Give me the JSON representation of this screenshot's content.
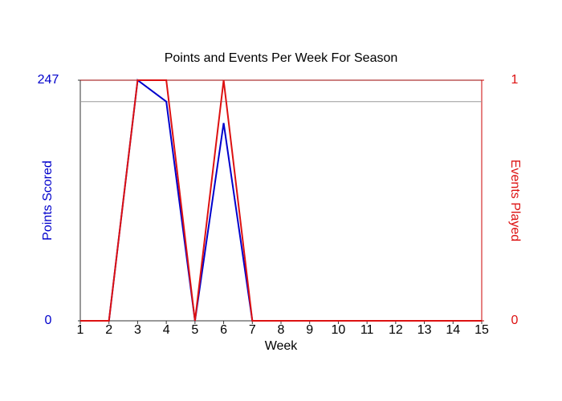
{
  "chart_data": {
    "type": "line",
    "title": "Points and Events Per Week For Season",
    "xlabel": "Week",
    "x": [
      1,
      2,
      3,
      4,
      5,
      6,
      7,
      8,
      9,
      10,
      11,
      12,
      13,
      14,
      15
    ],
    "xlim": [
      1,
      15
    ],
    "xticks": [
      1,
      2,
      3,
      4,
      5,
      6,
      7,
      8,
      9,
      10,
      11,
      12,
      13,
      14,
      15
    ],
    "ylim": [
      0,
      247
    ],
    "yticks": [
      0,
      247
    ],
    "y2lim": [
      0,
      1
    ],
    "y2ticks": [
      0,
      1
    ],
    "hline": 225,
    "series": [
      {
        "name": "Points Scored",
        "color": "#0000cc",
        "values": [
          0,
          0,
          247,
          225,
          0,
          203,
          0,
          0,
          0,
          0,
          0,
          0,
          0,
          0,
          0
        ]
      },
      {
        "name": "Events Played",
        "color": "#dd1111",
        "axis": "y2",
        "values": [
          0,
          0,
          1,
          1,
          0,
          1,
          0,
          0,
          0,
          0,
          0,
          0,
          0,
          0,
          0
        ]
      }
    ]
  }
}
